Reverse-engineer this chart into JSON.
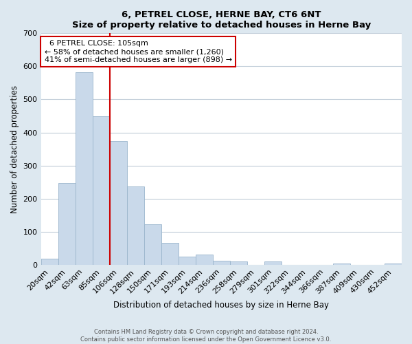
{
  "title": "6, PETREL CLOSE, HERNE BAY, CT6 6NT",
  "subtitle": "Size of property relative to detached houses in Herne Bay",
  "xlabel": "Distribution of detached houses by size in Herne Bay",
  "ylabel": "Number of detached properties",
  "bar_labels": [
    "20sqm",
    "42sqm",
    "63sqm",
    "85sqm",
    "106sqm",
    "128sqm",
    "150sqm",
    "171sqm",
    "193sqm",
    "214sqm",
    "236sqm",
    "258sqm",
    "279sqm",
    "301sqm",
    "322sqm",
    "344sqm",
    "366sqm",
    "387sqm",
    "409sqm",
    "430sqm",
    "452sqm"
  ],
  "bar_values": [
    18,
    247,
    583,
    450,
    375,
    236,
    122,
    67,
    25,
    31,
    13,
    10,
    0,
    9,
    0,
    0,
    0,
    4,
    0,
    0,
    3
  ],
  "bar_color": "#c9d9ea",
  "bar_edge_color": "#9ab5cc",
  "vline_x": 3.5,
  "vline_color": "#cc0000",
  "ylim": [
    0,
    700
  ],
  "yticks": [
    0,
    100,
    200,
    300,
    400,
    500,
    600,
    700
  ],
  "annotation_title": "6 PETREL CLOSE: 105sqm",
  "annotation_line1": "← 58% of detached houses are smaller (1,260)",
  "annotation_line2": "41% of semi-detached houses are larger (898) →",
  "annotation_box_color": "#ffffff",
  "annotation_box_edge": "#cc0000",
  "footer_line1": "Contains HM Land Registry data © Crown copyright and database right 2024.",
  "footer_line2": "Contains public sector information licensed under the Open Government Licence v3.0.",
  "background_color": "#dde8f0",
  "plot_background": "#ffffff",
  "grid_color": "#c0ccd8"
}
